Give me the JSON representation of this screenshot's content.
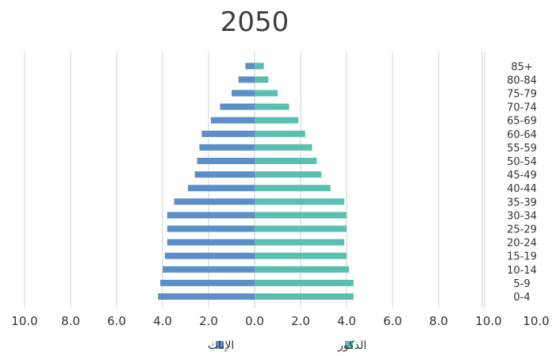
{
  "chart_data": {
    "type": "bar",
    "title": "2050",
    "orientation": "horizontal-population-pyramid",
    "categories": [
      "0-4",
      "5-9",
      "10-14",
      "15-19",
      "20-24",
      "25-29",
      "30-34",
      "35-39",
      "40-44",
      "45-49",
      "50-54",
      "55-59",
      "60-64",
      "65-69",
      "70-74",
      "75-79",
      "80-84",
      "85+"
    ],
    "series": [
      {
        "name": "الإناث",
        "side": "left",
        "color": "#5b8fc9",
        "values": [
          4.2,
          4.1,
          4.0,
          3.9,
          3.8,
          3.8,
          3.8,
          3.5,
          2.9,
          2.6,
          2.5,
          2.4,
          2.3,
          1.9,
          1.5,
          1.0,
          0.7,
          0.4
        ]
      },
      {
        "name": "الذكور",
        "side": "right",
        "color": "#5bbfb0",
        "values": [
          4.3,
          4.3,
          4.1,
          4.0,
          3.9,
          4.0,
          4.0,
          3.9,
          3.3,
          2.9,
          2.7,
          2.5,
          2.2,
          1.9,
          1.5,
          1.0,
          0.6,
          0.4
        ]
      }
    ],
    "x_tick_labels": [
      "10.0",
      "8.0",
      "6.0",
      "4.0",
      "2.0",
      "0.0",
      "2.0",
      "4.0",
      "6.0",
      "8.0",
      "10.0",
      "10.0"
    ],
    "xlim": [
      -10,
      10
    ],
    "grid": true,
    "legend_position": "bottom"
  }
}
